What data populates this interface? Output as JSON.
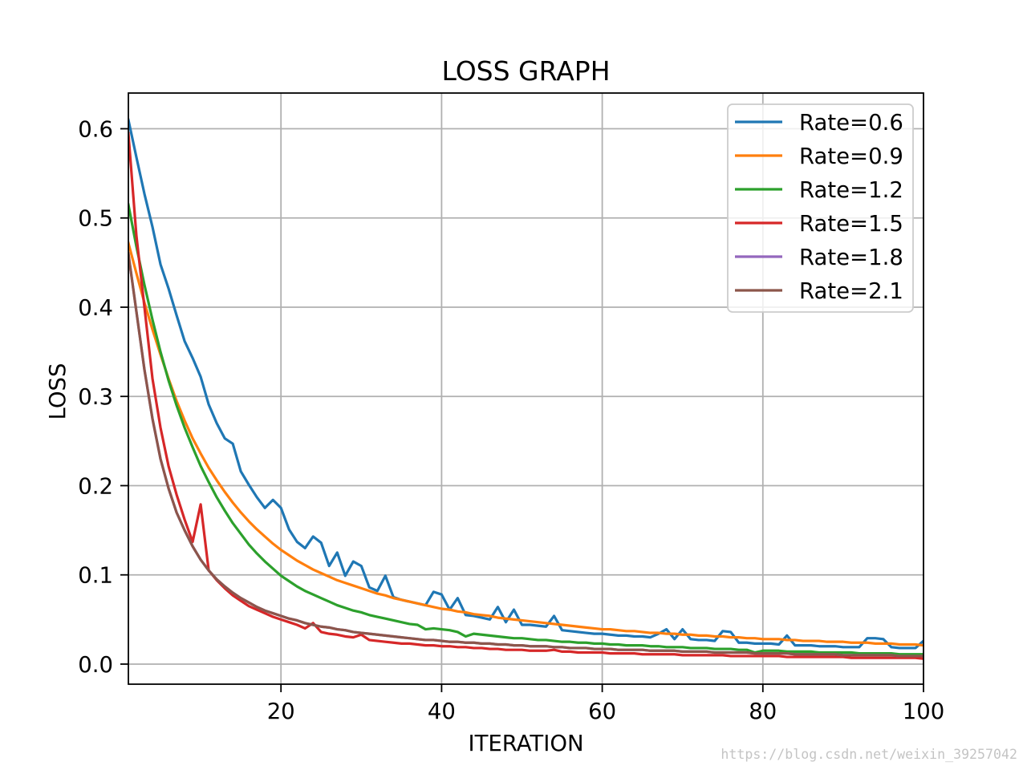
{
  "chart_data": {
    "type": "line",
    "title": "LOSS GRAPH",
    "xlabel": "ITERATION",
    "ylabel": "LOSS",
    "xlim": [
      1,
      100
    ],
    "ylim": [
      -0.0225,
      0.64
    ],
    "xticks": [
      20,
      40,
      60,
      80,
      100
    ],
    "xtick_labels": [
      "20",
      "40",
      "60",
      "80",
      "100"
    ],
    "yticks": [
      0.0,
      0.1,
      0.2,
      0.3,
      0.4,
      0.5,
      0.6
    ],
    "ytick_labels": [
      "0.0",
      "0.1",
      "0.2",
      "0.3",
      "0.4",
      "0.5",
      "0.6"
    ],
    "grid": true,
    "legend_position": "top-right",
    "x": [
      1,
      2,
      3,
      4,
      5,
      6,
      7,
      8,
      9,
      10,
      11,
      12,
      13,
      14,
      15,
      16,
      17,
      18,
      19,
      20,
      21,
      22,
      23,
      24,
      25,
      26,
      27,
      28,
      29,
      30,
      31,
      32,
      33,
      34,
      35,
      36,
      37,
      38,
      39,
      40,
      41,
      42,
      43,
      44,
      45,
      46,
      47,
      48,
      49,
      50,
      51,
      52,
      53,
      54,
      55,
      56,
      57,
      58,
      59,
      60,
      61,
      62,
      63,
      64,
      65,
      66,
      67,
      68,
      69,
      70,
      71,
      72,
      73,
      74,
      75,
      76,
      77,
      78,
      79,
      80,
      81,
      82,
      83,
      84,
      85,
      86,
      87,
      88,
      89,
      90,
      91,
      92,
      93,
      94,
      95,
      96,
      97,
      98,
      99,
      100
    ],
    "series": [
      {
        "name": "Rate=0.6",
        "color": "#1f77b4",
        "values": [
          0.61,
          0.568,
          0.527,
          0.49,
          0.448,
          0.421,
          0.391,
          0.362,
          0.343,
          0.322,
          0.291,
          0.27,
          0.253,
          0.247,
          0.216,
          0.201,
          0.187,
          0.175,
          0.184,
          0.175,
          0.151,
          0.137,
          0.13,
          0.143,
          0.136,
          0.11,
          0.125,
          0.099,
          0.115,
          0.11,
          0.086,
          0.082,
          0.099,
          0.075,
          0.072,
          0.07,
          0.068,
          0.066,
          0.081,
          0.078,
          0.061,
          0.074,
          0.055,
          0.054,
          0.052,
          0.05,
          0.064,
          0.047,
          0.061,
          0.044,
          0.044,
          0.043,
          0.042,
          0.054,
          0.038,
          0.037,
          0.036,
          0.035,
          0.034,
          0.034,
          0.033,
          0.032,
          0.032,
          0.031,
          0.031,
          0.03,
          0.034,
          0.039,
          0.028,
          0.039,
          0.028,
          0.027,
          0.027,
          0.026,
          0.037,
          0.036,
          0.024,
          0.024,
          0.023,
          0.023,
          0.023,
          0.022,
          0.032,
          0.021,
          0.021,
          0.021,
          0.02,
          0.02,
          0.02,
          0.019,
          0.019,
          0.019,
          0.029,
          0.029,
          0.028,
          0.019,
          0.018,
          0.018,
          0.018,
          0.026
        ]
      },
      {
        "name": "Rate=0.9",
        "color": "#ff7f0e",
        "values": [
          0.472,
          0.438,
          0.405,
          0.375,
          0.347,
          0.32,
          0.295,
          0.273,
          0.253,
          0.236,
          0.22,
          0.206,
          0.193,
          0.181,
          0.17,
          0.16,
          0.151,
          0.143,
          0.135,
          0.128,
          0.122,
          0.116,
          0.111,
          0.106,
          0.102,
          0.098,
          0.094,
          0.091,
          0.088,
          0.085,
          0.082,
          0.079,
          0.077,
          0.074,
          0.072,
          0.07,
          0.068,
          0.066,
          0.064,
          0.062,
          0.061,
          0.059,
          0.058,
          0.056,
          0.055,
          0.054,
          0.052,
          0.051,
          0.05,
          0.049,
          0.048,
          0.047,
          0.046,
          0.045,
          0.044,
          0.043,
          0.042,
          0.041,
          0.04,
          0.039,
          0.039,
          0.038,
          0.037,
          0.037,
          0.036,
          0.035,
          0.035,
          0.034,
          0.034,
          0.033,
          0.033,
          0.032,
          0.032,
          0.031,
          0.031,
          0.03,
          0.03,
          0.029,
          0.029,
          0.028,
          0.028,
          0.028,
          0.027,
          0.027,
          0.026,
          0.026,
          0.026,
          0.025,
          0.025,
          0.025,
          0.024,
          0.024,
          0.024,
          0.023,
          0.023,
          0.023,
          0.022,
          0.022,
          0.022,
          0.021
        ]
      },
      {
        "name": "Rate=1.2",
        "color": "#2ca02c",
        "values": [
          0.515,
          0.468,
          0.425,
          0.386,
          0.35,
          0.318,
          0.29,
          0.265,
          0.243,
          0.222,
          0.204,
          0.187,
          0.172,
          0.158,
          0.146,
          0.134,
          0.124,
          0.115,
          0.107,
          0.099,
          0.093,
          0.087,
          0.082,
          0.078,
          0.074,
          0.07,
          0.066,
          0.063,
          0.06,
          0.058,
          0.055,
          0.053,
          0.051,
          0.049,
          0.047,
          0.045,
          0.044,
          0.039,
          0.04,
          0.039,
          0.038,
          0.036,
          0.031,
          0.034,
          0.033,
          0.032,
          0.031,
          0.03,
          0.029,
          0.029,
          0.028,
          0.027,
          0.027,
          0.026,
          0.025,
          0.025,
          0.024,
          0.024,
          0.023,
          0.023,
          0.022,
          0.022,
          0.021,
          0.021,
          0.021,
          0.02,
          0.02,
          0.019,
          0.019,
          0.019,
          0.018,
          0.018,
          0.018,
          0.017,
          0.017,
          0.017,
          0.016,
          0.016,
          0.013,
          0.015,
          0.015,
          0.015,
          0.014,
          0.014,
          0.014,
          0.014,
          0.013,
          0.013,
          0.013,
          0.013,
          0.013,
          0.012,
          0.012,
          0.012,
          0.012,
          0.012,
          0.011,
          0.011,
          0.011,
          0.011
        ]
      },
      {
        "name": "Rate=1.5",
        "color": "#d62728",
        "values": [
          0.595,
          0.48,
          0.4,
          0.32,
          0.265,
          0.222,
          0.19,
          0.162,
          0.137,
          0.179,
          0.105,
          0.094,
          0.085,
          0.077,
          0.071,
          0.065,
          0.061,
          0.057,
          0.053,
          0.05,
          0.047,
          0.044,
          0.04,
          0.046,
          0.036,
          0.034,
          0.033,
          0.031,
          0.03,
          0.033,
          0.027,
          0.026,
          0.025,
          0.024,
          0.023,
          0.023,
          0.022,
          0.021,
          0.021,
          0.02,
          0.02,
          0.019,
          0.019,
          0.018,
          0.018,
          0.017,
          0.017,
          0.016,
          0.016,
          0.016,
          0.015,
          0.015,
          0.015,
          0.016,
          0.014,
          0.014,
          0.013,
          0.013,
          0.013,
          0.013,
          0.012,
          0.012,
          0.012,
          0.012,
          0.011,
          0.011,
          0.011,
          0.011,
          0.011,
          0.01,
          0.01,
          0.01,
          0.01,
          0.01,
          0.01,
          0.009,
          0.009,
          0.009,
          0.009,
          0.009,
          0.009,
          0.009,
          0.008,
          0.008,
          0.008,
          0.008,
          0.008,
          0.008,
          0.008,
          0.008,
          0.007,
          0.007,
          0.007,
          0.007,
          0.007,
          0.007,
          0.007,
          0.007,
          0.007,
          0.006
        ]
      },
      {
        "name": "Rate=1.8",
        "color": "#9467bd",
        "values": [
          0.46,
          0.395,
          0.33,
          0.275,
          0.23,
          0.197,
          0.17,
          0.15,
          0.132,
          0.117,
          0.105,
          0.095,
          0.087,
          0.08,
          0.074,
          0.069,
          0.064,
          0.06,
          0.057,
          0.054,
          0.051,
          0.049,
          0.046,
          0.044,
          0.042,
          0.041,
          0.039,
          0.038,
          0.036,
          0.035,
          0.034,
          0.033,
          0.032,
          0.031,
          0.03,
          0.029,
          0.028,
          0.027,
          0.027,
          0.026,
          0.025,
          0.025,
          0.024,
          0.024,
          0.023,
          0.023,
          0.022,
          0.022,
          0.021,
          0.021,
          0.02,
          0.02,
          0.02,
          0.019,
          0.019,
          0.018,
          0.018,
          0.018,
          0.017,
          0.017,
          0.017,
          0.016,
          0.016,
          0.016,
          0.016,
          0.015,
          0.015,
          0.015,
          0.015,
          0.014,
          0.014,
          0.014,
          0.014,
          0.013,
          0.013,
          0.013,
          0.013,
          0.013,
          0.012,
          0.012,
          0.012,
          0.012,
          0.012,
          0.011,
          0.011,
          0.011,
          0.011,
          0.011,
          0.011,
          0.01,
          0.01,
          0.01,
          0.01,
          0.01,
          0.01,
          0.01,
          0.009,
          0.009,
          0.009,
          0.009
        ]
      },
      {
        "name": "Rate=2.1",
        "color": "#8c564b",
        "values": [
          0.46,
          0.395,
          0.33,
          0.275,
          0.23,
          0.197,
          0.17,
          0.15,
          0.132,
          0.117,
          0.105,
          0.095,
          0.087,
          0.08,
          0.074,
          0.069,
          0.064,
          0.06,
          0.057,
          0.054,
          0.051,
          0.049,
          0.046,
          0.044,
          0.042,
          0.041,
          0.039,
          0.038,
          0.036,
          0.035,
          0.034,
          0.033,
          0.032,
          0.031,
          0.03,
          0.029,
          0.028,
          0.027,
          0.027,
          0.026,
          0.025,
          0.025,
          0.024,
          0.024,
          0.023,
          0.023,
          0.022,
          0.022,
          0.021,
          0.021,
          0.02,
          0.02,
          0.02,
          0.019,
          0.019,
          0.018,
          0.018,
          0.018,
          0.017,
          0.017,
          0.017,
          0.016,
          0.016,
          0.016,
          0.016,
          0.015,
          0.015,
          0.015,
          0.015,
          0.014,
          0.014,
          0.014,
          0.014,
          0.013,
          0.013,
          0.013,
          0.013,
          0.013,
          0.012,
          0.012,
          0.012,
          0.012,
          0.012,
          0.011,
          0.011,
          0.011,
          0.011,
          0.011,
          0.011,
          0.01,
          0.01,
          0.01,
          0.01,
          0.01,
          0.01,
          0.01,
          0.009,
          0.009,
          0.009,
          0.009
        ]
      }
    ]
  },
  "watermark": "https://blog.csdn.net/weixin_39257042"
}
